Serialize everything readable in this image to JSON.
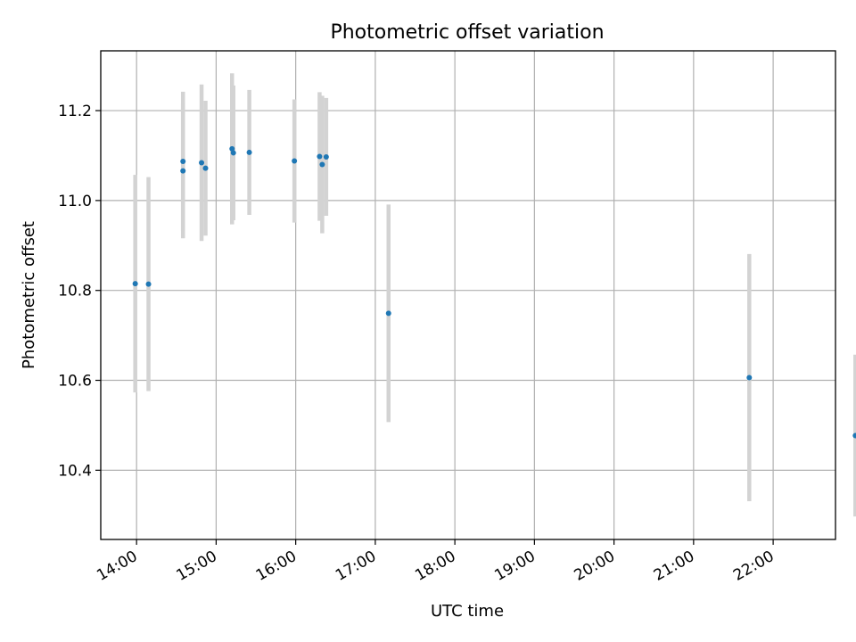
{
  "chart_data": {
    "type": "scatter",
    "title": "Photometric offset variation",
    "xlabel": "UTC time",
    "ylabel": "Photometric offset",
    "x_axis_kind": "time",
    "xlim": [
      "13:33",
      "22:47"
    ],
    "ylim": [
      10.246,
      11.333
    ],
    "xticks": [
      "14:00",
      "15:00",
      "16:00",
      "17:00",
      "18:00",
      "19:00",
      "20:00",
      "21:00",
      "22:00"
    ],
    "yticks": [
      "10.4",
      "10.6",
      "10.8",
      "11.0",
      "11.2"
    ],
    "grid": true,
    "marker_color": "#1f77b4",
    "errorbar_color": "#d3d3d3",
    "points": [
      {
        "x": "13:59",
        "y": 10.815,
        "err": 0.242
      },
      {
        "x": "14:09",
        "y": 10.814,
        "err": 0.238
      },
      {
        "x": "14:35",
        "y": 11.087,
        "err": 0.155
      },
      {
        "x": "14:35",
        "y": 11.066,
        "err": 0.15
      },
      {
        "x": "14:49",
        "y": 11.084,
        "err": 0.174
      },
      {
        "x": "14:52",
        "y": 11.072,
        "err": 0.15
      },
      {
        "x": "15:12",
        "y": 11.115,
        "err": 0.168
      },
      {
        "x": "15:13",
        "y": 11.106,
        "err": 0.15
      },
      {
        "x": "15:25",
        "y": 11.107,
        "err": 0.139
      },
      {
        "x": "15:59",
        "y": 11.088,
        "err": 0.137
      },
      {
        "x": "16:18",
        "y": 11.098,
        "err": 0.143
      },
      {
        "x": "16:20",
        "y": 11.08,
        "err": 0.153
      },
      {
        "x": "16:23",
        "y": 11.097,
        "err": 0.131
      },
      {
        "x": "17:10",
        "y": 10.749,
        "err": 0.242
      },
      {
        "x": "21:42",
        "y": 10.606,
        "err": 0.275
      },
      {
        "x": "23:02",
        "y": 10.477,
        "err": 0.18
      }
    ]
  }
}
